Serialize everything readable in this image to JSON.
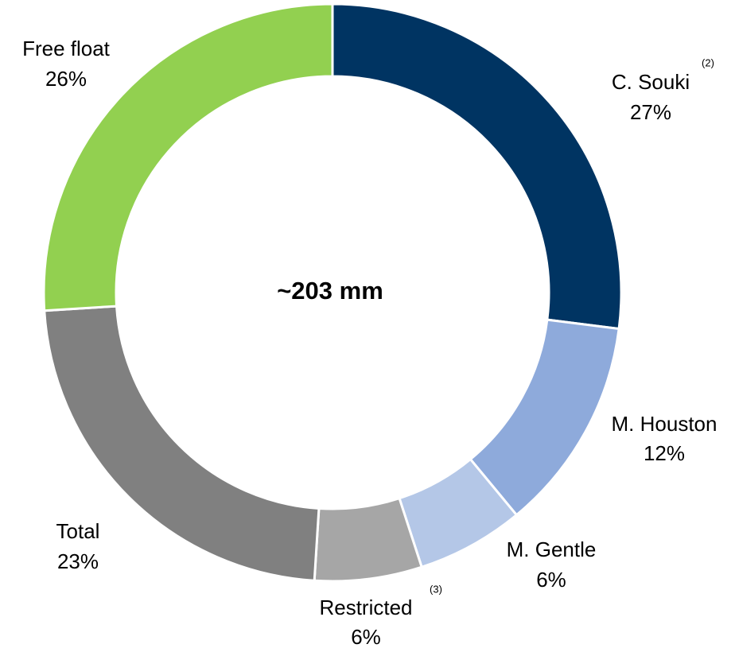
{
  "chart_data": {
    "type": "donut",
    "center_label": "~203 mm",
    "categories": [
      "C. Souki",
      "M. Houston",
      "M. Gentle",
      "Restricted",
      "Total",
      "Free float"
    ],
    "notes": [
      "(2)",
      null,
      null,
      "(3)",
      null,
      null
    ],
    "values": [
      27,
      12,
      6,
      6,
      23,
      26
    ],
    "value_labels": [
      "27%",
      "12%",
      "6%",
      "6%",
      "23%",
      "26%"
    ],
    "colors": [
      "#003462",
      "#8eaadb",
      "#b4c7e7",
      "#a6a6a6",
      "#808080",
      "#92d050"
    ]
  }
}
